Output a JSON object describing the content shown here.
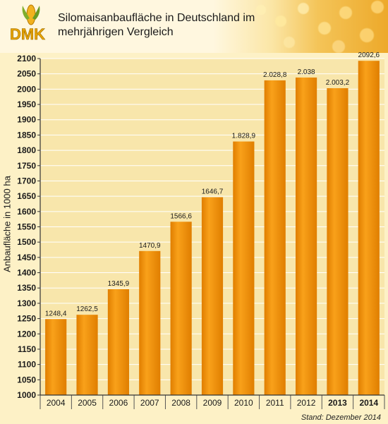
{
  "header": {
    "logo_text": "DMK",
    "title_line1": "Silomaisanbaufläche in Deutschland im",
    "title_line2": "mehrjährigen Vergleich"
  },
  "footer": {
    "stand": "Stand: Dezember 2014"
  },
  "colors": {
    "bar": "#f9a11a",
    "bar_dark": "#e07e00",
    "plot_bg": "#f8e6ab",
    "grid": "#ffffff"
  },
  "chart_data": {
    "type": "bar",
    "ylabel": "Anbaufläche in 1000 ha",
    "ylim": [
      1000,
      2100
    ],
    "ytick_step": 50,
    "grid": true,
    "categories": [
      "2004",
      "2005",
      "2006",
      "2007",
      "2008",
      "2009",
      "2010",
      "2011",
      "2012",
      "2013",
      "2014"
    ],
    "values": [
      1248.4,
      1262.5,
      1345.9,
      1470.9,
      1566.6,
      1646.7,
      1828.9,
      2028.8,
      2038,
      2003.2,
      2092.6
    ],
    "data_labels": [
      "1248,4",
      "1262,5",
      "1345,9",
      "1470,9",
      "1566,6",
      "1646,7",
      "1.828,9",
      "2.028,8",
      "2.038",
      "2.003,2",
      "2092,6"
    ],
    "bold_categories": [
      "2013",
      "2014"
    ]
  }
}
